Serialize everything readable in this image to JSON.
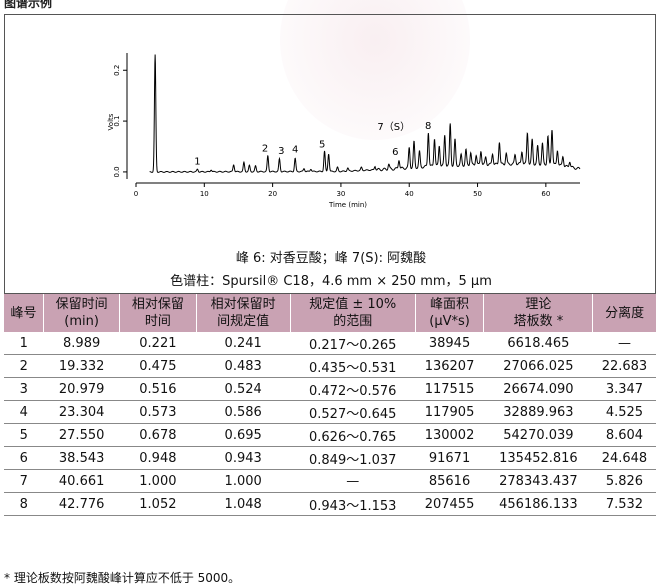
{
  "header_cut": "图谱示例",
  "chart_data": {
    "type": "line",
    "x_axis": {
      "label": "Time (min)",
      "range": [
        0,
        65
      ],
      "ticks": [
        0,
        10,
        20,
        30,
        40,
        50,
        60
      ]
    },
    "y_axis": {
      "label": "Volts",
      "range": [
        -0.01,
        0.23
      ],
      "ticks": [
        "0.0",
        "0.1",
        "0.2"
      ]
    },
    "peak_labels": [
      {
        "text": "1",
        "x": 8.989
      },
      {
        "text": "2",
        "x": 19.332
      },
      {
        "text": "3",
        "x": 20.979
      },
      {
        "text": "4",
        "x": 23.304
      },
      {
        "text": "5",
        "x": 27.55
      },
      {
        "text": "6",
        "x": 38.543
      },
      {
        "text": "7（S）",
        "x": 40.661
      },
      {
        "text": "8",
        "x": 42.776
      }
    ],
    "peaks": [
      [
        2.8,
        0.23
      ],
      [
        9.0,
        0.005
      ],
      [
        11.0,
        0.004
      ],
      [
        14.3,
        0.014
      ],
      [
        15.8,
        0.018
      ],
      [
        16.6,
        0.012
      ],
      [
        17.5,
        0.011
      ],
      [
        19.3,
        0.031
      ],
      [
        21.0,
        0.025
      ],
      [
        23.3,
        0.026
      ],
      [
        24.6,
        0.006
      ],
      [
        25.6,
        0.005
      ],
      [
        27.6,
        0.04
      ],
      [
        28.2,
        0.035
      ],
      [
        29.5,
        0.008
      ],
      [
        31.0,
        0.006
      ],
      [
        33.0,
        0.006
      ],
      [
        35.0,
        0.007
      ],
      [
        37.0,
        0.01
      ],
      [
        38.5,
        0.018
      ],
      [
        40.0,
        0.04
      ],
      [
        40.7,
        0.05
      ],
      [
        41.5,
        0.03
      ],
      [
        42.8,
        0.068
      ],
      [
        43.7,
        0.055
      ],
      [
        44.4,
        0.04
      ],
      [
        45.2,
        0.06
      ],
      [
        46.0,
        0.082
      ],
      [
        46.7,
        0.05
      ],
      [
        47.6,
        0.02
      ],
      [
        48.3,
        0.03
      ],
      [
        49.0,
        0.025
      ],
      [
        49.8,
        0.02
      ],
      [
        50.5,
        0.028
      ],
      [
        51.2,
        0.015
      ],
      [
        52.2,
        0.022
      ],
      [
        53.2,
        0.045
      ],
      [
        54.2,
        0.022
      ],
      [
        55.5,
        0.018
      ],
      [
        56.5,
        0.025
      ],
      [
        57.3,
        0.062
      ],
      [
        58.0,
        0.048
      ],
      [
        58.8,
        0.035
      ],
      [
        59.5,
        0.04
      ],
      [
        60.3,
        0.055
      ],
      [
        60.9,
        0.07
      ],
      [
        61.7,
        0.03
      ],
      [
        62.5,
        0.02
      ],
      [
        63.5,
        0.012
      ]
    ],
    "baseline": [
      [
        0,
        0.0
      ],
      [
        3.5,
        0.0
      ],
      [
        30,
        0.001
      ],
      [
        38,
        0.006
      ],
      [
        44,
        0.012
      ],
      [
        50,
        0.014
      ],
      [
        56,
        0.016
      ],
      [
        61,
        0.015
      ],
      [
        65,
        0.006
      ]
    ]
  },
  "caption_peaks": "峰 6: 对香豆酸；峰 7(S): 阿魏酸",
  "caption_column": "色谱柱：Spursil® C18，4.6 mm × 250 mm，5 μm",
  "table": {
    "headers": [
      [
        "峰号",
        ""
      ],
      [
        "保留时间",
        "(min)"
      ],
      [
        "相对保留",
        "时间"
      ],
      [
        "相对保留时",
        "间规定值"
      ],
      [
        "规定值 ± 10%",
        "的范围"
      ],
      [
        "峰面积",
        "(μV*s)"
      ],
      [
        "理论",
        "塔板数 *"
      ],
      [
        "分离度",
        ""
      ]
    ],
    "rows": [
      [
        "1",
        "8.989",
        "0.221",
        "0.241",
        "0.217～0.265",
        "38945",
        "6618.465",
        "—"
      ],
      [
        "2",
        "19.332",
        "0.475",
        "0.483",
        "0.435～0.531",
        "136207",
        "27066.025",
        "22.683"
      ],
      [
        "3",
        "20.979",
        "0.516",
        "0.524",
        "0.472～0.576",
        "117515",
        "26674.090",
        "3.347"
      ],
      [
        "4",
        "23.304",
        "0.573",
        "0.586",
        "0.527～0.645",
        "117905",
        "32889.963",
        "4.525"
      ],
      [
        "5",
        "27.550",
        "0.678",
        "0.695",
        "0.626～0.765",
        "130002",
        "54270.039",
        "8.604"
      ],
      [
        "6",
        "38.543",
        "0.948",
        "0.943",
        "0.849～1.037",
        "91671",
        "135452.816",
        "24.648"
      ],
      [
        "7",
        "40.661",
        "1.000",
        "1.000",
        "—",
        "85616",
        "278343.437",
        "5.826"
      ],
      [
        "8",
        "42.776",
        "1.052",
        "1.048",
        "0.943～1.153",
        "207455",
        "456186.133",
        "7.532"
      ]
    ]
  },
  "footnote": "* 理论板数按阿魏酸峰计算应不低于 5000。"
}
